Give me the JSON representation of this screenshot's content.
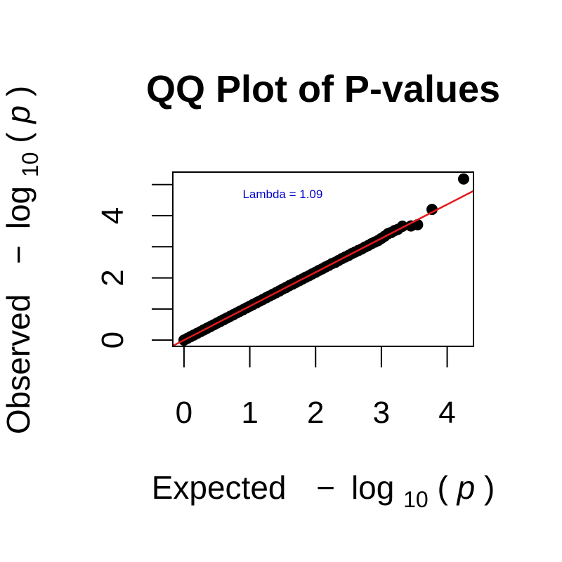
{
  "chart_data": {
    "type": "scatter",
    "title": "QQ Plot of P-values",
    "xlabel": {
      "prefix": "Expected",
      "minus": "−",
      "log": "log",
      "base": "10",
      "open": "(",
      "var": "p",
      "close": ")"
    },
    "ylabel": {
      "prefix": "Observed",
      "minus": "−",
      "log": "log",
      "base": "10",
      "open": "(",
      "var": "p",
      "close": ")"
    },
    "xlim": [
      -0.17,
      4.4
    ],
    "ylim": [
      -0.2,
      5.4
    ],
    "xticks": [
      0,
      1,
      2,
      3,
      4
    ],
    "yticks_minor": [
      0,
      1,
      2,
      3,
      4,
      5
    ],
    "yticks_labeled": [
      0,
      2,
      4
    ],
    "annotation": {
      "text": "Lambda = 1.09",
      "x": 1.5,
      "y": 4.7,
      "color": "#0000cd"
    },
    "reference_line": {
      "color": "#e41a1c",
      "slope": 1.09,
      "intercept": 0,
      "label": ""
    },
    "point_color": "#000000",
    "series": [
      {
        "points": [
          [
            0.0,
            0.0
          ],
          [
            0.05,
            0.055
          ],
          [
            0.1,
            0.11
          ],
          [
            0.15,
            0.163
          ],
          [
            0.2,
            0.218
          ],
          [
            0.25,
            0.272
          ],
          [
            0.3,
            0.327
          ],
          [
            0.35,
            0.381
          ],
          [
            0.4,
            0.436
          ],
          [
            0.45,
            0.49
          ],
          [
            0.5,
            0.545
          ],
          [
            0.55,
            0.6
          ],
          [
            0.6,
            0.654
          ],
          [
            0.65,
            0.709
          ],
          [
            0.7,
            0.763
          ],
          [
            0.75,
            0.818
          ],
          [
            0.8,
            0.872
          ],
          [
            0.85,
            0.927
          ],
          [
            0.9,
            0.981
          ],
          [
            0.95,
            1.036
          ],
          [
            1.0,
            1.09
          ],
          [
            1.05,
            1.145
          ],
          [
            1.1,
            1.199
          ],
          [
            1.15,
            1.254
          ],
          [
            1.2,
            1.308
          ],
          [
            1.25,
            1.363
          ],
          [
            1.3,
            1.417
          ],
          [
            1.35,
            1.472
          ],
          [
            1.4,
            1.526
          ],
          [
            1.45,
            1.58
          ],
          [
            1.5,
            1.64
          ],
          [
            1.55,
            1.69
          ],
          [
            1.6,
            1.75
          ],
          [
            1.65,
            1.8
          ],
          [
            1.7,
            1.855
          ],
          [
            1.75,
            1.91
          ],
          [
            1.8,
            1.965
          ],
          [
            1.85,
            2.02
          ],
          [
            1.9,
            2.07
          ],
          [
            1.95,
            2.13
          ],
          [
            2.0,
            2.18
          ],
          [
            2.05,
            2.24
          ],
          [
            2.1,
            2.29
          ],
          [
            2.15,
            2.35
          ],
          [
            2.2,
            2.4
          ],
          [
            2.25,
            2.46
          ],
          [
            2.3,
            2.5
          ],
          [
            2.35,
            2.56
          ],
          [
            2.4,
            2.62
          ],
          [
            2.45,
            2.67
          ],
          [
            2.5,
            2.72
          ],
          [
            2.55,
            2.78
          ],
          [
            2.6,
            2.83
          ],
          [
            2.65,
            2.88
          ],
          [
            2.7,
            2.93
          ],
          [
            2.75,
            2.99
          ],
          [
            2.8,
            3.04
          ],
          [
            2.85,
            3.1
          ],
          [
            2.9,
            3.15
          ],
          [
            2.95,
            3.2
          ],
          [
            3.0,
            3.27
          ],
          [
            3.05,
            3.34
          ],
          [
            3.1,
            3.42
          ],
          [
            3.15,
            3.46
          ],
          [
            3.2,
            3.52
          ],
          [
            3.25,
            3.56
          ],
          [
            3.32,
            3.66
          ],
          [
            3.45,
            3.67
          ],
          [
            3.55,
            3.71
          ],
          [
            3.77,
            4.2
          ],
          [
            4.25,
            5.18
          ]
        ]
      }
    ]
  }
}
